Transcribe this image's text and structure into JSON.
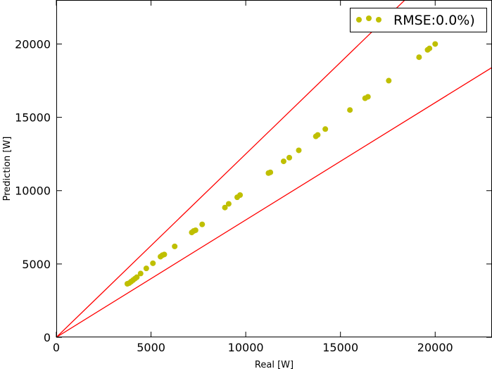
{
  "chart_data": {
    "type": "scatter",
    "xlabel": "Real [W]",
    "ylabel": "Prediction [W]",
    "xlim": [
      0,
      23000
    ],
    "ylim": [
      0,
      23000
    ],
    "x_ticks": [
      0,
      5000,
      10000,
      15000,
      20000
    ],
    "y_ticks": [
      0,
      5000,
      10000,
      15000,
      20000
    ],
    "grid": false,
    "legend_position": "top-right",
    "series": [
      {
        "name": "RMSE:0.0%)",
        "marker": "circle",
        "color": "#bfbf00",
        "points": [
          [
            3750,
            3650
          ],
          [
            3850,
            3700
          ],
          [
            3950,
            3800
          ],
          [
            4050,
            3900
          ],
          [
            4150,
            4000
          ],
          [
            4250,
            4100
          ],
          [
            4450,
            4350
          ],
          [
            4750,
            4700
          ],
          [
            5100,
            5050
          ],
          [
            5500,
            5500
          ],
          [
            5600,
            5600
          ],
          [
            5700,
            5650
          ],
          [
            6250,
            6200
          ],
          [
            7150,
            7150
          ],
          [
            7250,
            7250
          ],
          [
            7350,
            7300
          ],
          [
            7700,
            7700
          ],
          [
            8900,
            8850
          ],
          [
            9100,
            9100
          ],
          [
            9550,
            9550
          ],
          [
            9700,
            9700
          ],
          [
            11200,
            11200
          ],
          [
            11300,
            11250
          ],
          [
            12000,
            12000
          ],
          [
            12300,
            12250
          ],
          [
            12800,
            12750
          ],
          [
            13700,
            13700
          ],
          [
            13800,
            13800
          ],
          [
            14200,
            14200
          ],
          [
            15500,
            15500
          ],
          [
            16300,
            16300
          ],
          [
            16450,
            16400
          ],
          [
            17550,
            17500
          ],
          [
            19150,
            19100
          ],
          [
            19600,
            19600
          ],
          [
            19700,
            19700
          ],
          [
            20000,
            20000
          ]
        ]
      }
    ],
    "reference_lines": [
      {
        "slope": 1.25,
        "color": "#ff0000"
      },
      {
        "slope": 0.8,
        "color": "#ff0000"
      }
    ]
  }
}
